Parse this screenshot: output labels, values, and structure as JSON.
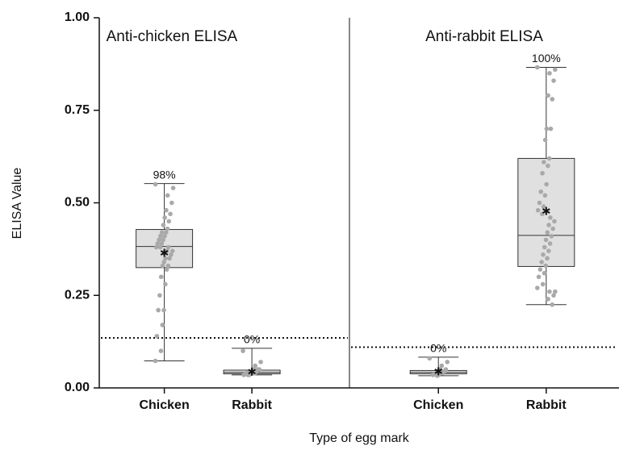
{
  "chart_data": {
    "type": "box",
    "ylabel": "ELISA Value",
    "xlabel": "Type of egg mark",
    "ylim": [
      0,
      1
    ],
    "yticks": [
      {
        "value": 0,
        "label": "0.00"
      },
      {
        "value": 0.25,
        "label": "0.25"
      },
      {
        "value": 0.5,
        "label": "0.50"
      },
      {
        "value": 0.75,
        "label": "0.75"
      },
      {
        "value": 1,
        "label": "1.00"
      }
    ],
    "box_color": "#e0e0e0",
    "point_color": "#a9a9a9",
    "panels": [
      {
        "title": "Anti-chicken ELISA",
        "threshold": 0.135,
        "groups": [
          {
            "category": "Chicken",
            "annotation": "98%",
            "min": 0.073,
            "q1": 0.325,
            "median": 0.382,
            "q3": 0.428,
            "max": 0.552,
            "mean": 0.365,
            "points": [
              0.55,
              0.54,
              0.52,
              0.5,
              0.48,
              0.47,
              0.46,
              0.45,
              0.44,
              0.43,
              0.42,
              0.42,
              0.41,
              0.41,
              0.4,
              0.4,
              0.39,
              0.39,
              0.38,
              0.38,
              0.38,
              0.37,
              0.37,
              0.36,
              0.35,
              0.35,
              0.34,
              0.33,
              0.33,
              0.32,
              0.3,
              0.28,
              0.25,
              0.21,
              0.21,
              0.17,
              0.14,
              0.1,
              0.073
            ]
          },
          {
            "category": "Rabbit",
            "annotation": "0%",
            "min": 0.035,
            "q1": 0.038,
            "median": 0.042,
            "q3": 0.048,
            "max": 0.107,
            "mean": 0.044,
            "points": [
              0.1,
              0.07,
              0.06,
              0.05,
              0.05,
              0.05,
              0.045,
              0.045,
              0.04,
              0.04,
              0.04,
              0.04,
              0.04,
              0.04,
              0.04,
              0.038,
              0.038,
              0.035,
              0.035,
              0.035
            ]
          }
        ]
      },
      {
        "title": "Anti-rabbit ELISA",
        "threshold": 0.11,
        "groups": [
          {
            "category": "Chicken",
            "annotation": "0%",
            "min": 0.033,
            "q1": 0.038,
            "median": 0.042,
            "q3": 0.047,
            "max": 0.083,
            "mean": 0.045,
            "points": [
              0.08,
              0.07,
              0.06,
              0.05,
              0.05,
              0.045,
              0.045,
              0.04,
              0.04,
              0.04,
              0.04,
              0.04,
              0.038,
              0.035,
              0.035,
              0.033
            ]
          },
          {
            "category": "Rabbit",
            "annotation": "100%",
            "min": 0.225,
            "q1": 0.328,
            "median": 0.412,
            "q3": 0.62,
            "max": 0.866,
            "mean": 0.478,
            "points": [
              0.866,
              0.86,
              0.85,
              0.83,
              0.79,
              0.78,
              0.7,
              0.7,
              0.67,
              0.62,
              0.61,
              0.6,
              0.58,
              0.55,
              0.53,
              0.52,
              0.5,
              0.49,
              0.48,
              0.47,
              0.46,
              0.45,
              0.44,
              0.43,
              0.42,
              0.41,
              0.4,
              0.39,
              0.38,
              0.37,
              0.36,
              0.35,
              0.34,
              0.33,
              0.32,
              0.31,
              0.3,
              0.28,
              0.27,
              0.26,
              0.26,
              0.25,
              0.24,
              0.225
            ]
          }
        ]
      }
    ]
  }
}
